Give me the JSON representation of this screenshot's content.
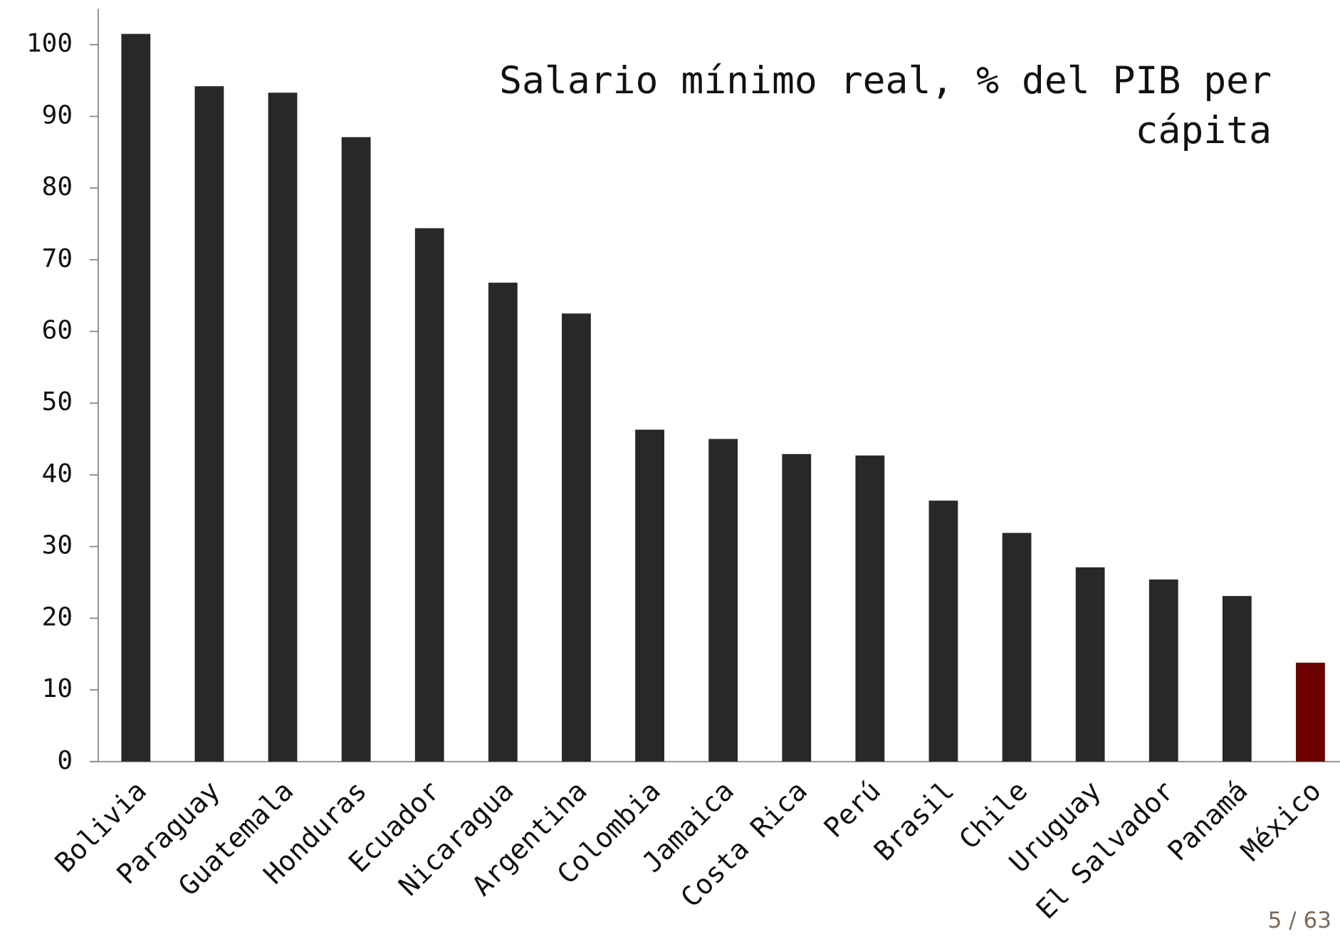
{
  "chart_data": {
    "type": "bar",
    "title": "Salario mínimo real, % del PIB per cápita",
    "categories": [
      "Bolivia",
      "Paraguay",
      "Guatemala",
      "Honduras",
      "Ecuador",
      "Nicaragua",
      "Argentina",
      "Colombia",
      "Jamaica",
      "Costa Rica",
      "Perú",
      "Brasil",
      "Chile",
      "Uruguay",
      "El Salvador",
      "Panamá",
      "México"
    ],
    "values": [
      101.5,
      94.2,
      93.3,
      87.1,
      74.4,
      66.8,
      62.5,
      46.3,
      45.0,
      42.9,
      42.7,
      36.4,
      31.9,
      27.1,
      25.4,
      23.1,
      13.8
    ],
    "colors": [
      "#282828",
      "#282828",
      "#282828",
      "#282828",
      "#282828",
      "#282828",
      "#282828",
      "#282828",
      "#282828",
      "#282828",
      "#282828",
      "#282828",
      "#282828",
      "#282828",
      "#282828",
      "#282828",
      "#6b0000"
    ],
    "ylim": [
      0,
      105
    ],
    "yticks": [
      0,
      10,
      20,
      30,
      40,
      50,
      60,
      70,
      80,
      90,
      100
    ],
    "grid": false
  },
  "page_number": "5 / 63"
}
